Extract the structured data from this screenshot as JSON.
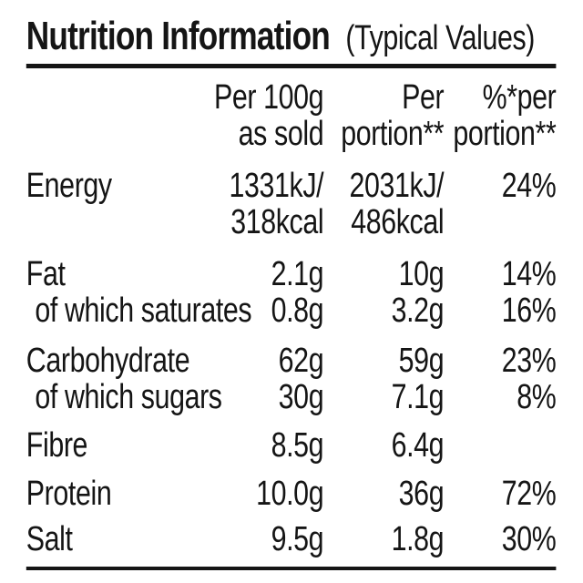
{
  "title": {
    "main": "Nutrition Information",
    "suffix": "(Typical Values)"
  },
  "columns": {
    "col1": {
      "line1": "Per 100g",
      "line2": "as sold"
    },
    "col2": {
      "line1": "Per",
      "line2": "portion**"
    },
    "col3": {
      "line1": "%*per",
      "line2": "portion**"
    }
  },
  "rows": [
    {
      "label": "Energy",
      "c1": "1331kJ/",
      "c2": "2031kJ/",
      "c3": "24%",
      "line2": {
        "c1": "318kcal",
        "c2": "486kcal",
        "c3": ""
      }
    },
    {
      "label": "Fat",
      "c1": "2.1g",
      "c2": "10g",
      "c3": "14%"
    },
    {
      "label": "of which saturates",
      "c1": "0.8g",
      "c2": "3.2g",
      "c3": "16%"
    },
    {
      "label": "Carbohydrate",
      "c1": "62g",
      "c2": "59g",
      "c3": "23%"
    },
    {
      "label": "of which sugars",
      "c1": "30g",
      "c2": "7.1g",
      "c3": "8%"
    },
    {
      "label": "Fibre",
      "c1": "8.5g",
      "c2": "6.4g",
      "c3": ""
    },
    {
      "label": "Protein",
      "c1": "10.0g",
      "c2": "36g",
      "c3": "72%"
    },
    {
      "label": "Salt",
      "c1": "9.5g",
      "c2": "1.8g",
      "c3": "30%"
    }
  ],
  "colors": {
    "background": "#ffffff",
    "text": "#151515",
    "rule": "#151515"
  }
}
